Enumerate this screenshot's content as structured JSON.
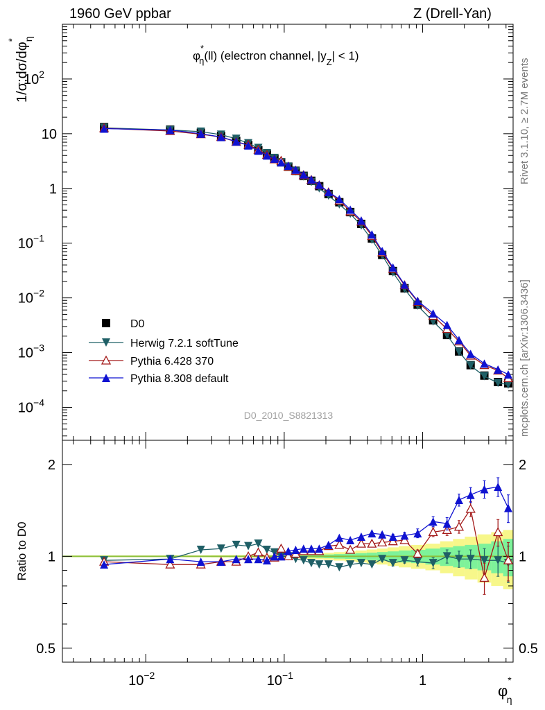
{
  "header": {
    "left": "1960 GeV ppbar",
    "right": "Z (Drell-Yan)"
  },
  "sidebar": {
    "rivet": "Rivet 3.1.10, ≥ 2.7M events",
    "mcplots": "mcplots.cern.ch [arXiv:1306.3436]"
  },
  "colors": {
    "D0": "#000000",
    "Herwig": "#1f5f66",
    "Pythia6": "#a31a1a",
    "Pythia8": "#0f12d1",
    "band_inner": "#7ef29a",
    "band_outer": "#f7f78a",
    "unity": "#8bbf3a"
  },
  "chart_data": [
    {
      "type": "scatter",
      "panel": "main",
      "title": "φ*_η(ll) (electron channel, |y_Z| < 1)",
      "ylabel": "1/σ;dσ/dφ*_η",
      "analysis": "D0_2010_S8821313",
      "xscale": "log",
      "yscale": "log",
      "xlim": [
        0.0025,
        4.5
      ],
      "ylim": [
        2.5e-05,
        1000
      ],
      "x": [
        0.005,
        0.015,
        0.025,
        0.035,
        0.045,
        0.055,
        0.065,
        0.075,
        0.085,
        0.095,
        0.107,
        0.121,
        0.138,
        0.157,
        0.179,
        0.209,
        0.25,
        0.3,
        0.36,
        0.43,
        0.51,
        0.61,
        0.74,
        0.92,
        1.19,
        1.5,
        1.83,
        2.22,
        2.79,
        3.5,
        4.15
      ],
      "series": [
        {
          "name": "D0",
          "marker": "square",
          "values": [
            13.2,
            11.9,
            10.4,
            9.1,
            7.4,
            6.2,
            5.0,
            4.2,
            3.5,
            3.0,
            2.5,
            2.1,
            1.7,
            1.38,
            1.1,
            0.79,
            0.56,
            0.37,
            0.225,
            0.122,
            0.061,
            0.031,
            0.015,
            0.0075,
            0.0039,
            0.0021,
            0.00105,
            0.00059,
            0.00038,
            0.00029,
            0.000275
          ]
        },
        {
          "name": "Herwig 7.2.1 softTune",
          "marker": "triangle-down",
          "values": [
            12.8,
            11.7,
            10.9,
            9.6,
            8.1,
            6.7,
            5.5,
            4.4,
            3.6,
            3.0,
            2.5,
            2.05,
            1.65,
            1.31,
            1.0,
            0.74,
            0.51,
            0.345,
            0.21,
            0.115,
            0.06,
            0.029,
            0.0145,
            0.0072,
            0.0037,
            0.0021,
            0.00103,
            0.00058,
            0.00037,
            0.00028,
            0.00026
          ]
        },
        {
          "name": "Pythia 6.428 370",
          "marker": "triangle-open",
          "values": [
            12.6,
            11.2,
            9.8,
            8.7,
            7.1,
            6.3,
            5.1,
            4.1,
            3.4,
            3.2,
            2.5,
            2.1,
            1.75,
            1.43,
            1.14,
            0.85,
            0.6,
            0.38,
            0.248,
            0.135,
            0.068,
            0.034,
            0.017,
            0.0085,
            0.0047,
            0.0027,
            0.0016,
            0.00088,
            0.00059,
            0.00047,
            0.00034
          ]
        },
        {
          "name": "Pythia 8.308 default",
          "marker": "triangle-up",
          "values": [
            12.4,
            11.7,
            10.0,
            8.7,
            7.2,
            6.1,
            4.9,
            4.0,
            3.5,
            3.0,
            2.6,
            2.2,
            1.8,
            1.46,
            1.17,
            0.86,
            0.64,
            0.41,
            0.26,
            0.145,
            0.072,
            0.036,
            0.0175,
            0.0088,
            0.0052,
            0.0032,
            0.0017,
            0.00095,
            0.00063,
            0.00049,
            0.0004
          ]
        }
      ]
    },
    {
      "type": "scatter",
      "panel": "ratio",
      "ylabel": "Ratio to D0",
      "xlabel": "φ*_η",
      "xscale": "log",
      "yscale": "log",
      "xlim": [
        0.0025,
        4.5
      ],
      "ylim": [
        0.45,
        2.4
      ],
      "x": [
        0.005,
        0.015,
        0.025,
        0.035,
        0.045,
        0.055,
        0.065,
        0.075,
        0.085,
        0.095,
        0.107,
        0.121,
        0.138,
        0.157,
        0.179,
        0.209,
        0.25,
        0.3,
        0.36,
        0.43,
        0.51,
        0.61,
        0.74,
        0.92,
        1.19,
        1.5,
        1.83,
        2.22,
        2.79,
        3.5,
        4.15
      ],
      "band_inner": [
        0.003,
        0.003,
        0.003,
        0.004,
        0.004,
        0.005,
        0.005,
        0.006,
        0.006,
        0.007,
        0.007,
        0.008,
        0.009,
        0.01,
        0.012,
        0.014,
        0.017,
        0.02,
        0.024,
        0.028,
        0.033,
        0.038,
        0.045,
        0.05,
        0.06,
        0.07,
        0.08,
        0.09,
        0.1,
        0.12,
        0.14
      ],
      "band_outer": [
        0.006,
        0.006,
        0.007,
        0.008,
        0.009,
        0.01,
        0.011,
        0.012,
        0.013,
        0.014,
        0.015,
        0.016,
        0.018,
        0.02,
        0.023,
        0.027,
        0.032,
        0.038,
        0.045,
        0.053,
        0.06,
        0.07,
        0.08,
        0.09,
        0.1,
        0.12,
        0.14,
        0.16,
        0.18,
        0.2,
        0.22
      ],
      "series": [
        {
          "name": "Herwig 7.2.1 softTune",
          "marker": "triangle-down",
          "values": [
            0.97,
            0.98,
            1.05,
            1.06,
            1.09,
            1.08,
            1.1,
            1.05,
            1.03,
            1.0,
            1.0,
            0.98,
            0.97,
            0.95,
            0.94,
            0.94,
            0.92,
            0.94,
            0.95,
            0.94,
            0.98,
            0.95,
            0.97,
            0.96,
            0.95,
            1.0,
            0.98,
            0.98,
            0.97,
            0.97,
            0.95
          ],
          "errors": [
            0.01,
            0.01,
            0.01,
            0.01,
            0.01,
            0.01,
            0.01,
            0.01,
            0.01,
            0.01,
            0.01,
            0.01,
            0.01,
            0.01,
            0.01,
            0.01,
            0.01,
            0.01,
            0.01,
            0.01,
            0.015,
            0.02,
            0.02,
            0.03,
            0.04,
            0.05,
            0.06,
            0.07,
            0.09,
            0.11,
            0.13
          ]
        },
        {
          "name": "Pythia 6.428 370",
          "marker": "triangle-open",
          "values": [
            0.96,
            0.94,
            0.94,
            0.96,
            0.96,
            1.0,
            1.03,
            0.99,
            0.99,
            1.06,
            1.0,
            1.02,
            1.04,
            1.04,
            1.04,
            1.08,
            1.09,
            1.05,
            1.1,
            1.1,
            1.11,
            1.12,
            1.13,
            1.02,
            1.2,
            1.22,
            1.25,
            1.43,
            0.85,
            1.2,
            0.97
          ],
          "errors": [
            0.01,
            0.01,
            0.01,
            0.01,
            0.01,
            0.01,
            0.01,
            0.01,
            0.01,
            0.01,
            0.01,
            0.01,
            0.01,
            0.01,
            0.01,
            0.01,
            0.01,
            0.01,
            0.01,
            0.01,
            0.015,
            0.02,
            0.02,
            0.03,
            0.04,
            0.05,
            0.06,
            0.08,
            0.1,
            0.12,
            0.14
          ]
        },
        {
          "name": "Pythia 8.308 default",
          "marker": "triangle-up",
          "values": [
            0.94,
            0.98,
            0.96,
            0.96,
            0.98,
            0.98,
            0.98,
            0.97,
            1.0,
            1.0,
            1.04,
            1.05,
            1.06,
            1.06,
            1.06,
            1.09,
            1.15,
            1.13,
            1.16,
            1.19,
            1.18,
            1.16,
            1.17,
            1.19,
            1.3,
            1.28,
            1.53,
            1.59,
            1.66,
            1.69,
            1.44
          ],
          "errors": [
            0.01,
            0.01,
            0.01,
            0.01,
            0.01,
            0.01,
            0.01,
            0.01,
            0.01,
            0.01,
            0.01,
            0.01,
            0.01,
            0.01,
            0.01,
            0.01,
            0.01,
            0.01,
            0.01,
            0.01,
            0.015,
            0.02,
            0.03,
            0.04,
            0.05,
            0.06,
            0.07,
            0.09,
            0.11,
            0.12,
            0.15
          ]
        }
      ]
    }
  ]
}
